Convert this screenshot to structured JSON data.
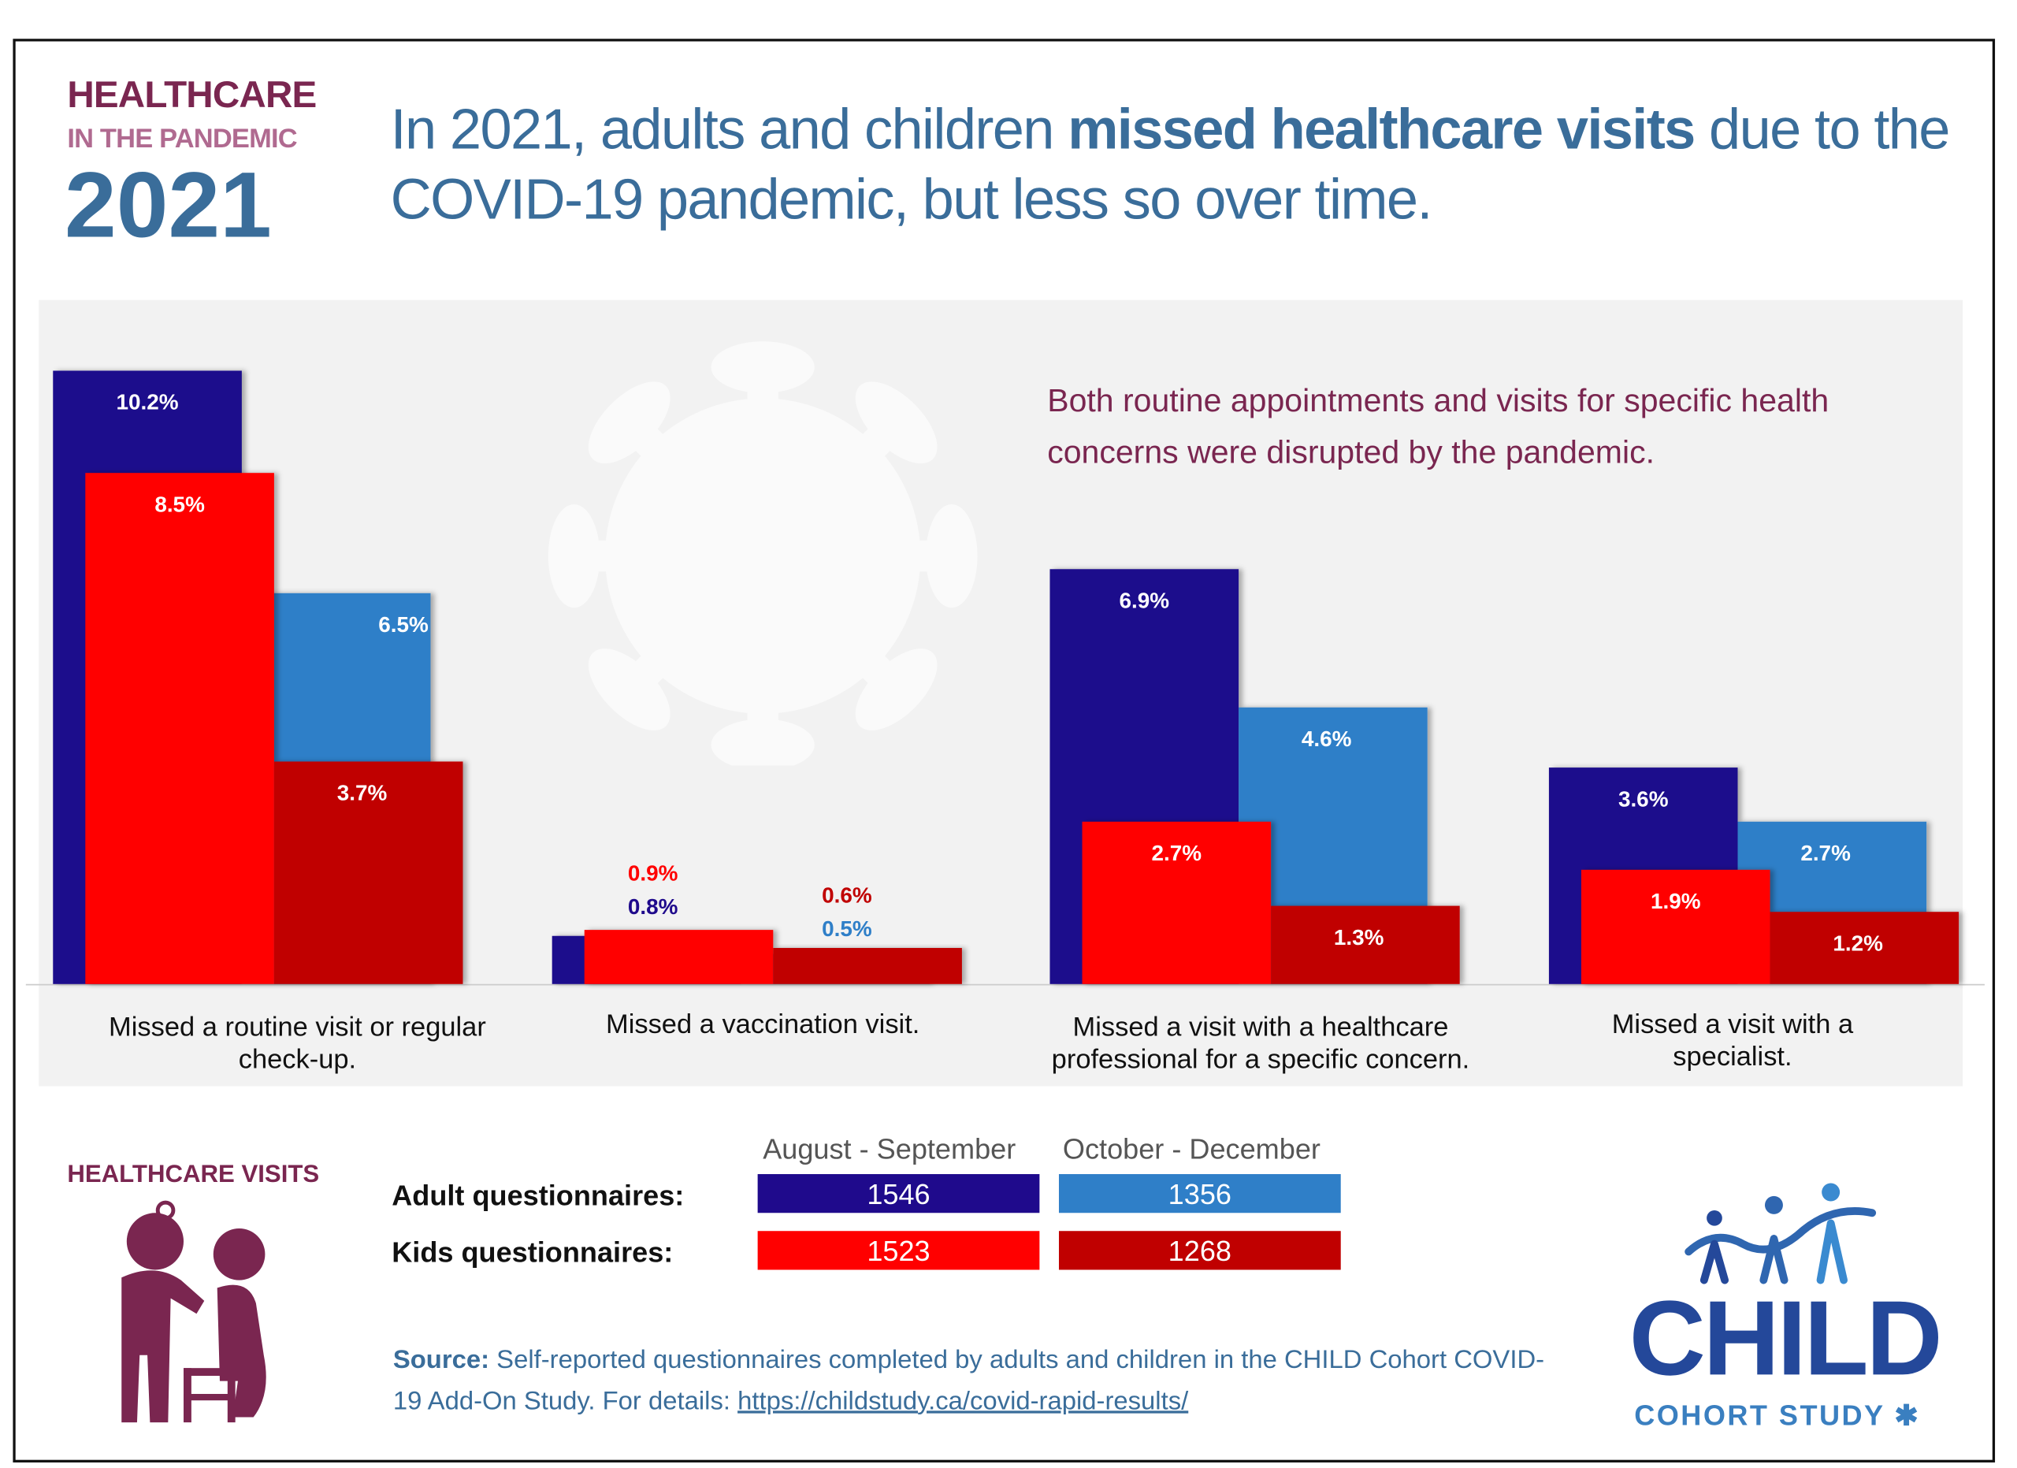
{
  "brand": {
    "line1": "HEALTHCARE",
    "line2": "IN THE PANDEMIC",
    "year": "2021"
  },
  "headline": {
    "pre": "In 2021, adults and children ",
    "bold": "missed healthcare visits",
    "post": " due to the COVID-19 pandemic, but less so over time."
  },
  "note": "Both routine appointments and visits for specific health concerns were disrupted by the pandemic.",
  "colors": {
    "aug_adults": "#1f0a8c",
    "oct_adults": "#2f7fc8",
    "aug_kids": "#ff0000",
    "oct_kids": "#c00000",
    "maroon": "#7a2650",
    "title_blue": "#3a6d9a"
  },
  "chart_data": {
    "type": "bar",
    "unit": "%",
    "categories": [
      "Missed a routine visit or regular check-up.",
      "Missed a vaccination visit.",
      "Missed a visit with a healthcare professional for a specific concern.",
      "Missed a visit with a specialist."
    ],
    "series": [
      {
        "name": "Adult questionnaires: August - September",
        "values": [
          10.2,
          0.8,
          6.9,
          3.6
        ],
        "labels": [
          "10.2%",
          "0.8%",
          "6.9%",
          "3.6%"
        ]
      },
      {
        "name": "Adult questionnaires: October - December",
        "values": [
          6.5,
          0.5,
          4.6,
          2.7
        ],
        "labels": [
          "6.5%",
          "0.5%",
          "4.6%",
          "2.7%"
        ]
      },
      {
        "name": "Kids questionnaires: August - September",
        "values": [
          8.5,
          0.9,
          2.7,
          1.9
        ],
        "labels": [
          "8.5%",
          "0.9%",
          "2.7%",
          "1.9%"
        ]
      },
      {
        "name": "Kids questionnaires: October - December",
        "values": [
          3.7,
          0.6,
          1.3,
          1.2
        ],
        "labels": [
          "3.7%",
          "0.6%",
          "1.3%",
          "1.2%"
        ]
      }
    ],
    "grid": false
  },
  "legend": {
    "title": "HEALTHCARE VISITS",
    "columns": [
      "August - September",
      "October - December"
    ],
    "rows": [
      {
        "label": "Adult questionnaires:",
        "values": [
          "1546",
          "1356"
        ]
      },
      {
        "label": "Kids questionnaires:",
        "values": [
          "1523",
          "1268"
        ]
      }
    ]
  },
  "source": {
    "label": "Source:",
    "text": " Self-reported questionnaires completed by adults and children in the CHILD Cohort COVID-19 Add-On Study. For details: ",
    "link": "https://childstudy.ca/covid-rapid-results/"
  },
  "logo": {
    "name": "CHILD",
    "sub": "COHORT STUDY"
  },
  "icons": {
    "virus": "virus-icon",
    "doctor": "doctor-patient-icon",
    "logo": "child-figures-icon",
    "leaf": "maple-leaf-icon"
  }
}
